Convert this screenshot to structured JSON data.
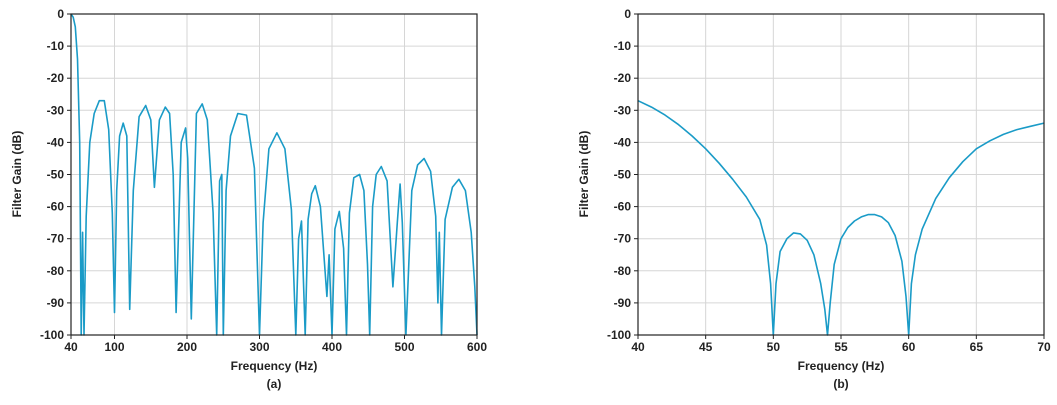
{
  "chart_data": [
    {
      "type": "line",
      "caption": "(a)",
      "xlabel": "Frequency (Hz)",
      "ylabel": "Filter Gain (dB)",
      "xlim": [
        40,
        600
      ],
      "ylim": [
        -100,
        0
      ],
      "xticks": [
        40,
        100,
        200,
        300,
        400,
        500,
        600
      ],
      "yticks": [
        0,
        -10,
        -20,
        -30,
        -40,
        -50,
        -60,
        -70,
        -80,
        -90,
        -100
      ],
      "grid": true,
      "color": "#1a9bc7",
      "series": [
        {
          "x": [
            40,
            43,
            46,
            49,
            52,
            54,
            56,
            58,
            61,
            66,
            72,
            79,
            86,
            92,
            97,
            100,
            103,
            107,
            112,
            117,
            121,
            126,
            134,
            143,
            150,
            155,
            162,
            170,
            176,
            181,
            185,
            192,
            198,
            201,
            206,
            213,
            221,
            228,
            236,
            241,
            245,
            248,
            250,
            254,
            260,
            270,
            282,
            293,
            300,
            305,
            313,
            324,
            335,
            344,
            350,
            354,
            358,
            363,
            367,
            372,
            377,
            384,
            393,
            396,
            400,
            404,
            410,
            416,
            420,
            424,
            430,
            438,
            444,
            449,
            452,
            456,
            461,
            468,
            476,
            484,
            490,
            494,
            497,
            502,
            510,
            518,
            527,
            536,
            543,
            546,
            548,
            551,
            556,
            566,
            575,
            584,
            592,
            597,
            600
          ],
          "y": [
            0,
            -1,
            -4,
            -14,
            -40,
            -100,
            -68,
            -100,
            -63,
            -40,
            -31,
            -27,
            -27,
            -36,
            -62,
            -93,
            -55,
            -38,
            -34,
            -38,
            -92,
            -55,
            -32,
            -28.5,
            -33,
            -54,
            -33,
            -29,
            -31,
            -50,
            -93,
            -40,
            -35.5,
            -45,
            -95,
            -31,
            -28,
            -33,
            -62,
            -100,
            -52,
            -50,
            -100,
            -55,
            -38,
            -31,
            -31.5,
            -48,
            -100,
            -65,
            -42,
            -37,
            -42,
            -61,
            -100,
            -70,
            -64.5,
            -100,
            -64,
            -56,
            -53.5,
            -60,
            -88,
            -75,
            -100,
            -67,
            -61.5,
            -73,
            -100,
            -62,
            -51,
            -50,
            -55,
            -78,
            -100,
            -60,
            -50,
            -47.5,
            -52,
            -85,
            -65,
            -53,
            -65,
            -100,
            -55,
            -47,
            -45,
            -49,
            -63,
            -90,
            -68,
            -100,
            -64,
            -54,
            -51.5,
            -55,
            -68,
            -85,
            -100
          ]
        }
      ]
    },
    {
      "type": "line",
      "caption": "(b)",
      "xlabel": "Frequency (Hz)",
      "ylabel": "Filter Gain (dB)",
      "xlim": [
        40,
        70
      ],
      "ylim": [
        -100,
        0
      ],
      "xticks": [
        40,
        45,
        50,
        55,
        60,
        65,
        70
      ],
      "yticks": [
        0,
        -10,
        -20,
        -30,
        -40,
        -50,
        -60,
        -70,
        -80,
        -90,
        -100
      ],
      "grid": true,
      "color": "#1a9bc7",
      "series": [
        {
          "x": [
            40,
            41,
            42,
            43,
            44,
            45,
            46,
            47,
            48,
            49,
            49.5,
            49.8,
            50,
            50.2,
            50.5,
            51,
            51.5,
            52,
            52.5,
            53,
            53.5,
            53.8,
            54,
            54.2,
            54.5,
            55,
            55.5,
            56,
            56.5,
            57,
            57.5,
            58,
            58.5,
            59,
            59.5,
            59.8,
            60,
            60.2,
            60.5,
            61,
            62,
            63,
            64,
            65,
            66,
            67,
            68,
            69,
            70
          ],
          "y": [
            -27,
            -29,
            -31.5,
            -34.5,
            -38,
            -42,
            -46.5,
            -51.5,
            -57,
            -64,
            -72,
            -84,
            -100,
            -84,
            -74,
            -70,
            -68.2,
            -68.5,
            -70.5,
            -75,
            -84,
            -92,
            -100,
            -90,
            -78,
            -70,
            -66.5,
            -64.5,
            -63.2,
            -62.5,
            -62.5,
            -63.2,
            -65,
            -69,
            -77,
            -88,
            -100,
            -84,
            -75,
            -67,
            -57.5,
            -51,
            -46,
            -42,
            -39.5,
            -37.5,
            -36,
            -35,
            -34
          ]
        }
      ]
    }
  ]
}
